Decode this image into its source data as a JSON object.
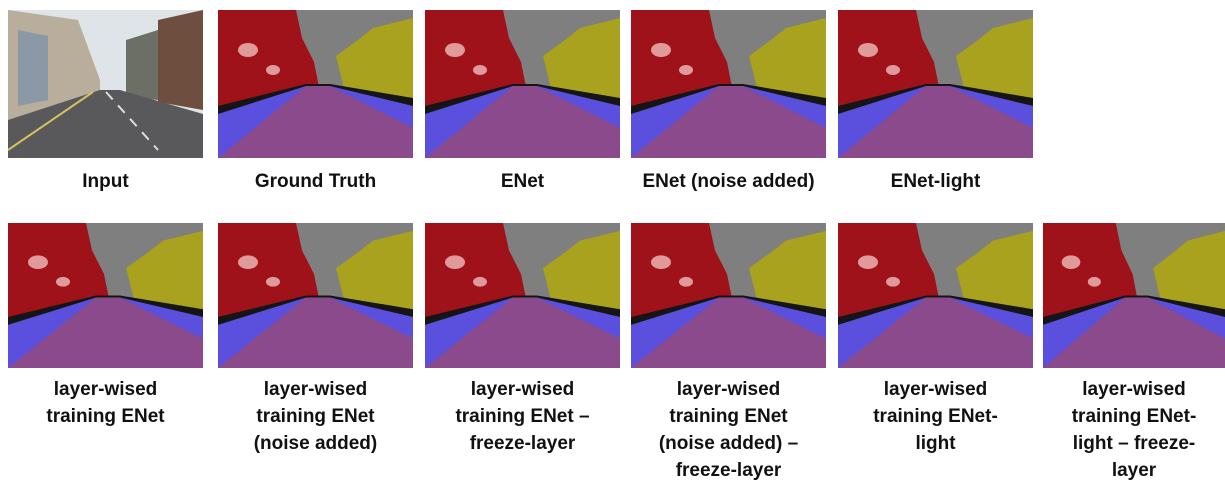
{
  "rows": [
    [
      {
        "caption": [
          "Input"
        ]
      },
      {
        "caption": [
          "Ground Truth"
        ]
      },
      {
        "caption": [
          "ENet"
        ]
      },
      {
        "caption": [
          "ENet (noise added)"
        ]
      },
      {
        "caption": [
          "ENet-light"
        ]
      }
    ],
    [
      {
        "caption": [
          "layer-wised",
          "training ENet"
        ]
      },
      {
        "caption": [
          "layer-wised",
          "training ENet",
          "(noise added)"
        ]
      },
      {
        "caption": [
          "layer-wised",
          "training ENet –",
          "freeze-layer"
        ]
      },
      {
        "caption": [
          "layer-wised",
          "training ENet",
          "(noise added) –",
          "freeze-layer"
        ]
      },
      {
        "caption": [
          "layer-wised",
          "training ENet-",
          "light"
        ]
      },
      {
        "caption": [
          "layer-wised",
          "training ENet-",
          "light – freeze-",
          "layer"
        ]
      }
    ]
  ]
}
